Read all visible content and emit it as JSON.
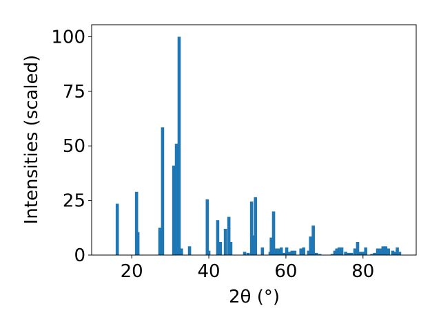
{
  "chart_data": {
    "type": "bar",
    "xlabel": "2θ (°)",
    "ylabel": "Intensities (scaled)",
    "color": "#1f77b4",
    "x": [
      16.25,
      21.25,
      21.6,
      27.3,
      28.0,
      30.9,
      31.6,
      32.3,
      32.9,
      35.0,
      39.6,
      40.0,
      42.3,
      43.0,
      44.3,
      45.2,
      45.7,
      49.3,
      50.2,
      51.1,
      51.6,
      52.1,
      53.9,
      55.9,
      56.2,
      56.8,
      57.3,
      58.0,
      58.8,
      59.5,
      60.2,
      60.9,
      61.6,
      62.3,
      63.9,
      64.6,
      65.9,
      66.4,
      67.1,
      67.9,
      68.8,
      72.0,
      72.7,
      73.2,
      73.8,
      74.5,
      75.5,
      76.3,
      77.0,
      77.9,
      78.6,
      79.3,
      80.0,
      80.7,
      82.3,
      83.0,
      83.8,
      84.5,
      85.2,
      85.9,
      86.6,
      87.7,
      88.4,
      88.9,
      89.5
    ],
    "values": [
      23.5,
      29,
      10.5,
      12.5,
      58.5,
      41,
      51,
      100,
      3,
      4,
      25.5,
      2,
      16,
      6,
      12,
      17.5,
      6,
      1.5,
      1,
      24.5,
      9,
      26.5,
      3.5,
      1.5,
      8,
      20,
      3,
      3,
      3.5,
      1,
      3.5,
      1.5,
      2,
      2,
      3,
      3.5,
      2,
      8.5,
      13.5,
      1,
      0.5,
      0.5,
      2,
      3,
      3.5,
      3.5,
      1.5,
      1,
      1,
      3,
      6,
      1.5,
      1.5,
      3.5,
      0.5,
      1,
      3,
      3,
      4,
      4,
      3,
      2,
      1.5,
      3.5,
      1.5
    ],
    "xlim": [
      9.6,
      93.8
    ],
    "ylim": [
      0,
      105.5
    ],
    "xticks": [
      20,
      40,
      60,
      80
    ],
    "yticks": [
      0,
      25,
      50,
      75,
      100
    ]
  }
}
